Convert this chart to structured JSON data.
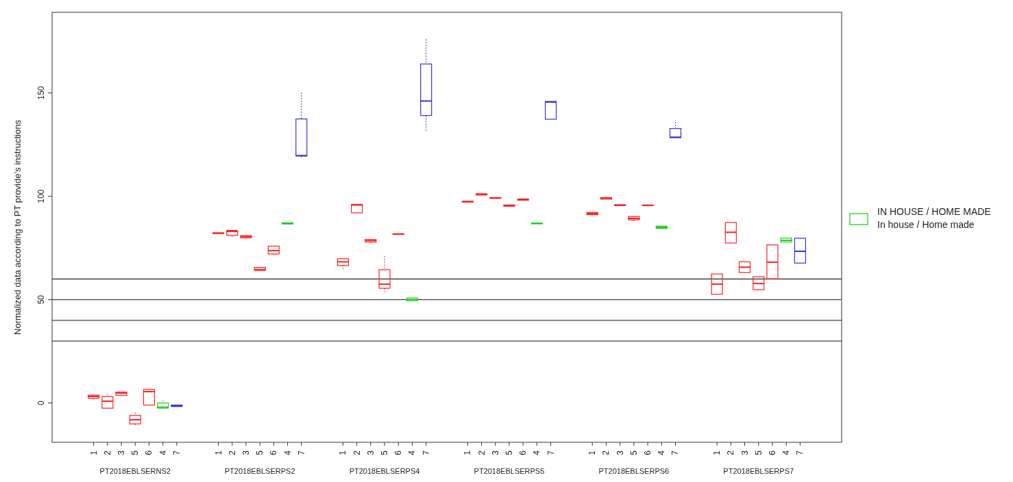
{
  "chart_data": {
    "type": "box",
    "ylabel": "Normalized data according to PT provide’s instructions",
    "categories": [
      null,
      "1",
      "2",
      "3",
      "5",
      "6",
      "4",
      "7",
      null,
      null,
      "1",
      "2",
      "3",
      "5",
      "6",
      "4",
      "7",
      null,
      null,
      "1",
      "2",
      "3",
      "5",
      "6",
      "4",
      "7",
      null,
      null,
      "1",
      "2",
      "3",
      "5",
      "6",
      "4",
      "7",
      null,
      null,
      "1",
      "2",
      "3",
      "5",
      "6",
      "4",
      "7",
      null,
      null,
      "1",
      "2",
      "3",
      "5",
      "6",
      "4",
      "7",
      null
    ],
    "annotations": [
      "PT2018EBLSERNS2",
      "PT2018EBLSERPS2",
      "PT2018EBLSERPS4",
      "PT2018EBLSERPS5",
      "PT2018EBLSERPS6",
      "PT2018EBLSERPS7"
    ],
    "ylim": [
      -19,
      189
    ],
    "yticks": [
      0,
      50,
      100,
      150
    ],
    "grid": false,
    "legend": "right",
    "ref_lines": [
      {
        "axis": "y",
        "value": 30,
        "color": "#404040"
      },
      {
        "axis": "y",
        "value": 40,
        "color": "#404040"
      },
      {
        "axis": "y",
        "value": 50,
        "color": "#404040"
      },
      {
        "axis": "y",
        "value": 60,
        "color": "#404040"
      }
    ],
    "series": [
      {
        "color": "#ff2020",
        "boxes": [
          null,
          {
            "low": 1.5,
            "q1": 2.3,
            "median": 3.2,
            "q3": 3.8,
            "high": 3.8
          },
          {
            "low": -2.5,
            "q1": -2.5,
            "median": 0.9,
            "q3": 3.1,
            "high": 4.4
          },
          {
            "low": 3.4,
            "q1": 3.7,
            "median": 4.8,
            "q3": 5.3,
            "high": 5.3
          },
          {
            "low": -10.9,
            "q1": -10.1,
            "median": -8.1,
            "q3": -6,
            "high": -4.6
          },
          {
            "low": -1,
            "q1": -1,
            "median": 5.5,
            "q3": 6.6,
            "high": 6.6
          },
          null,
          null,
          null,
          null,
          {
            "low": 82,
            "q1": 82,
            "median": 82.2,
            "q3": 82.3,
            "high": 82.3
          },
          {
            "low": 80.3,
            "q1": 81.1,
            "median": 83,
            "q3": 83.5,
            "high": 83.5
          },
          {
            "low": 79.3,
            "q1": 79.9,
            "median": 80.5,
            "q3": 81,
            "high": 81
          },
          {
            "low": 64.1,
            "q1": 64.1,
            "median": 64.6,
            "q3": 65.6,
            "high": 65.6
          },
          {
            "low": 71.4,
            "q1": 72.1,
            "median": 73.7,
            "q3": 75.9,
            "high": 75.9
          },
          null,
          null,
          null,
          null,
          {
            "low": 64.7,
            "q1": 66.5,
            "median": 68.3,
            "q3": 69.8,
            "high": 69.8
          },
          {
            "low": 92,
            "q1": 92,
            "median": 95.8,
            "q3": 96.1,
            "high": 96.1
          },
          {
            "low": 76.7,
            "q1": 77.9,
            "median": 78.6,
            "q3": 79.1,
            "high": 79.1
          },
          {
            "low": 53.6,
            "q1": 55.5,
            "median": 57.5,
            "q3": 64.5,
            "high": 71
          },
          {
            "low": 81.6,
            "q1": 81.6,
            "median": 81.7,
            "q3": 81.9,
            "high": 81.9
          },
          null,
          null,
          null,
          null,
          {
            "low": 97.2,
            "q1": 97.2,
            "median": 97.4,
            "q3": 97.6,
            "high": 97.6
          },
          {
            "low": 100.6,
            "q1": 100.6,
            "median": 101,
            "q3": 101.2,
            "high": 101.2
          },
          {
            "low": 99,
            "q1": 99,
            "median": 99.2,
            "q3": 99.4,
            "high": 99.4
          },
          {
            "low": 95.2,
            "q1": 95.2,
            "median": 95.5,
            "q3": 95.8,
            "high": 95.8
          },
          {
            "low": 98.1,
            "q1": 98.1,
            "median": 98.4,
            "q3": 98.7,
            "high": 98.7
          },
          null,
          null,
          null,
          null,
          {
            "low": 91.1,
            "q1": 91.1,
            "median": 91.6,
            "q3": 92.2,
            "high": 92.2
          },
          {
            "low": 98.6,
            "q1": 98.6,
            "median": 99.2,
            "q3": 99.4,
            "high": 99.4
          },
          {
            "low": 95.5,
            "q1": 95.5,
            "median": 95.7,
            "q3": 95.9,
            "high": 95.9
          },
          {
            "low": 88,
            "q1": 88.6,
            "median": 89.3,
            "q3": 90.2,
            "high": 90.2
          },
          {
            "low": 95.5,
            "q1": 95.5,
            "median": 95.6,
            "q3": 95.8,
            "high": 95.8
          },
          null,
          null,
          null,
          null,
          {
            "low": 52.6,
            "q1": 52.6,
            "median": 57.5,
            "q3": 62.4,
            "high": 62.4
          },
          {
            "low": 77.4,
            "q1": 77.4,
            "median": 82.6,
            "q3": 87.3,
            "high": 87.3
          },
          {
            "low": 63.1,
            "q1": 63.1,
            "median": 65.7,
            "q3": 68.3,
            "high": 68.3
          },
          {
            "low": 54.8,
            "q1": 54.8,
            "median": 57.8,
            "q3": 61.1,
            "high": 61.1
          },
          {
            "low": 60.1,
            "q1": 60.1,
            "median": 68.1,
            "q3": 76.5,
            "high": 76.5
          },
          null,
          null,
          null
        ]
      },
      {
        "name": "IN HOUSE / HOME MADE\nIn house / Home made",
        "color": "#22cc22",
        "boxes": [
          null,
          null,
          null,
          null,
          null,
          null,
          {
            "low": -2.5,
            "q1": -2.5,
            "median": -2,
            "q3": 0,
            "high": 1.2
          },
          null,
          null,
          null,
          null,
          null,
          null,
          null,
          null,
          {
            "low": 86.6,
            "q1": 86.6,
            "median": 86.9,
            "q3": 87.2,
            "high": 87.2
          },
          null,
          null,
          null,
          null,
          null,
          null,
          null,
          null,
          {
            "low": 49.5,
            "q1": 49.5,
            "median": 50,
            "q3": 50.8,
            "high": 50.8
          },
          null,
          null,
          null,
          null,
          null,
          null,
          null,
          null,
          {
            "low": 86.7,
            "q1": 86.7,
            "median": 86.9,
            "q3": 87.1,
            "high": 87.1
          },
          null,
          null,
          null,
          null,
          null,
          null,
          null,
          null,
          {
            "low": 84.5,
            "q1": 84.5,
            "median": 85,
            "q3": 85.6,
            "high": 85.6
          },
          null,
          null,
          null,
          null,
          null,
          null,
          null,
          null,
          {
            "low": 77.9,
            "q1": 77.9,
            "median": 78.7,
            "q3": 79.8,
            "high": 79.8
          },
          null,
          null
        ]
      },
      {
        "color": "#3333dd",
        "boxes": [
          null,
          null,
          null,
          null,
          null,
          null,
          null,
          {
            "low": -1.7,
            "q1": -1.7,
            "median": -1.4,
            "q3": -1,
            "high": -1
          },
          null,
          null,
          null,
          null,
          null,
          null,
          null,
          null,
          {
            "low": 118.8,
            "q1": 119.5,
            "median": 119.7,
            "q3": 137.4,
            "high": 150.2
          },
          null,
          null,
          null,
          null,
          null,
          null,
          null,
          null,
          {
            "low": 131.8,
            "q1": 139.1,
            "median": 146.1,
            "q3": 164,
            "high": 176
          },
          null,
          null,
          null,
          null,
          null,
          null,
          null,
          null,
          {
            "low": 137.3,
            "q1": 137.3,
            "median": 145.6,
            "q3": 145.9,
            "high": 145.9
          },
          null,
          null,
          null,
          null,
          null,
          null,
          null,
          null,
          {
            "low": 128.4,
            "q1": 128.4,
            "median": 128.6,
            "q3": 132.8,
            "high": 136
          },
          null,
          null,
          null,
          null,
          null,
          null,
          null,
          null,
          {
            "low": 67.7,
            "q1": 67.7,
            "median": 73.4,
            "q3": 79.7,
            "high": 79.7
          },
          null
        ]
      }
    ]
  }
}
